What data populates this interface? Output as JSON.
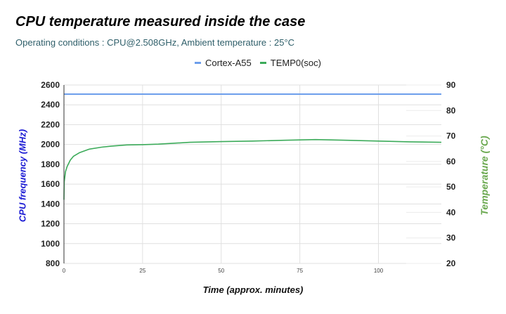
{
  "header": {
    "title": "CPU temperature measured inside the case",
    "subtitle": "Operating conditions : CPU@2.508GHz, Ambient temperature : 25°C"
  },
  "legend": {
    "items": [
      {
        "label": "Cortex-A55",
        "color": "#6d9eeb"
      },
      {
        "label": "TEMP0(soc)",
        "color": "#3cab5a"
      }
    ]
  },
  "axes": {
    "left_title": "CPU frequency (MHz)",
    "left_title_color": "#1c1cd4",
    "right_title": "Temperature (°C)",
    "right_title_color": "#6aa84f",
    "x_title": "Time (approx. minutes)"
  },
  "chart_data": {
    "type": "line",
    "title": "CPU temperature measured inside the case",
    "subtitle": "Operating conditions : CPU@2.508GHz, Ambient temperature : 25°C",
    "xlabel": "Time (approx. minutes)",
    "ylabel": "CPU frequency (MHz)",
    "y2label": "Temperature (°C)",
    "xlim": [
      0,
      120
    ],
    "ylim": [
      800,
      2600
    ],
    "y2lim": [
      20,
      90
    ],
    "x_ticks": [
      0,
      25,
      50,
      75,
      100
    ],
    "y_ticks": [
      800,
      1000,
      1200,
      1400,
      1600,
      1800,
      2000,
      2200,
      2400,
      2600
    ],
    "y2_ticks": [
      20,
      30,
      40,
      50,
      60,
      70,
      80,
      90
    ],
    "grid": true,
    "legend_position": "top",
    "series": [
      {
        "name": "Cortex-A55",
        "axis": "left",
        "color": "#6d9eeb",
        "x": [
          0,
          120
        ],
        "values": [
          2508,
          2508
        ]
      },
      {
        "name": "TEMP0(soc)",
        "axis": "right",
        "color": "#3cab5a",
        "x": [
          0,
          0.1,
          0.5,
          1,
          2,
          3,
          5,
          8,
          12,
          15,
          20,
          25,
          30,
          40,
          50,
          60,
          70,
          80,
          90,
          100,
          110,
          120
        ],
        "values": [
          45,
          52,
          56,
          58,
          60.5,
          62,
          63.5,
          64.8,
          65.6,
          66.0,
          66.5,
          66.6,
          66.8,
          67.5,
          67.8,
          68.0,
          68.3,
          68.6,
          68.3,
          68.0,
          67.7,
          67.5
        ]
      }
    ]
  }
}
